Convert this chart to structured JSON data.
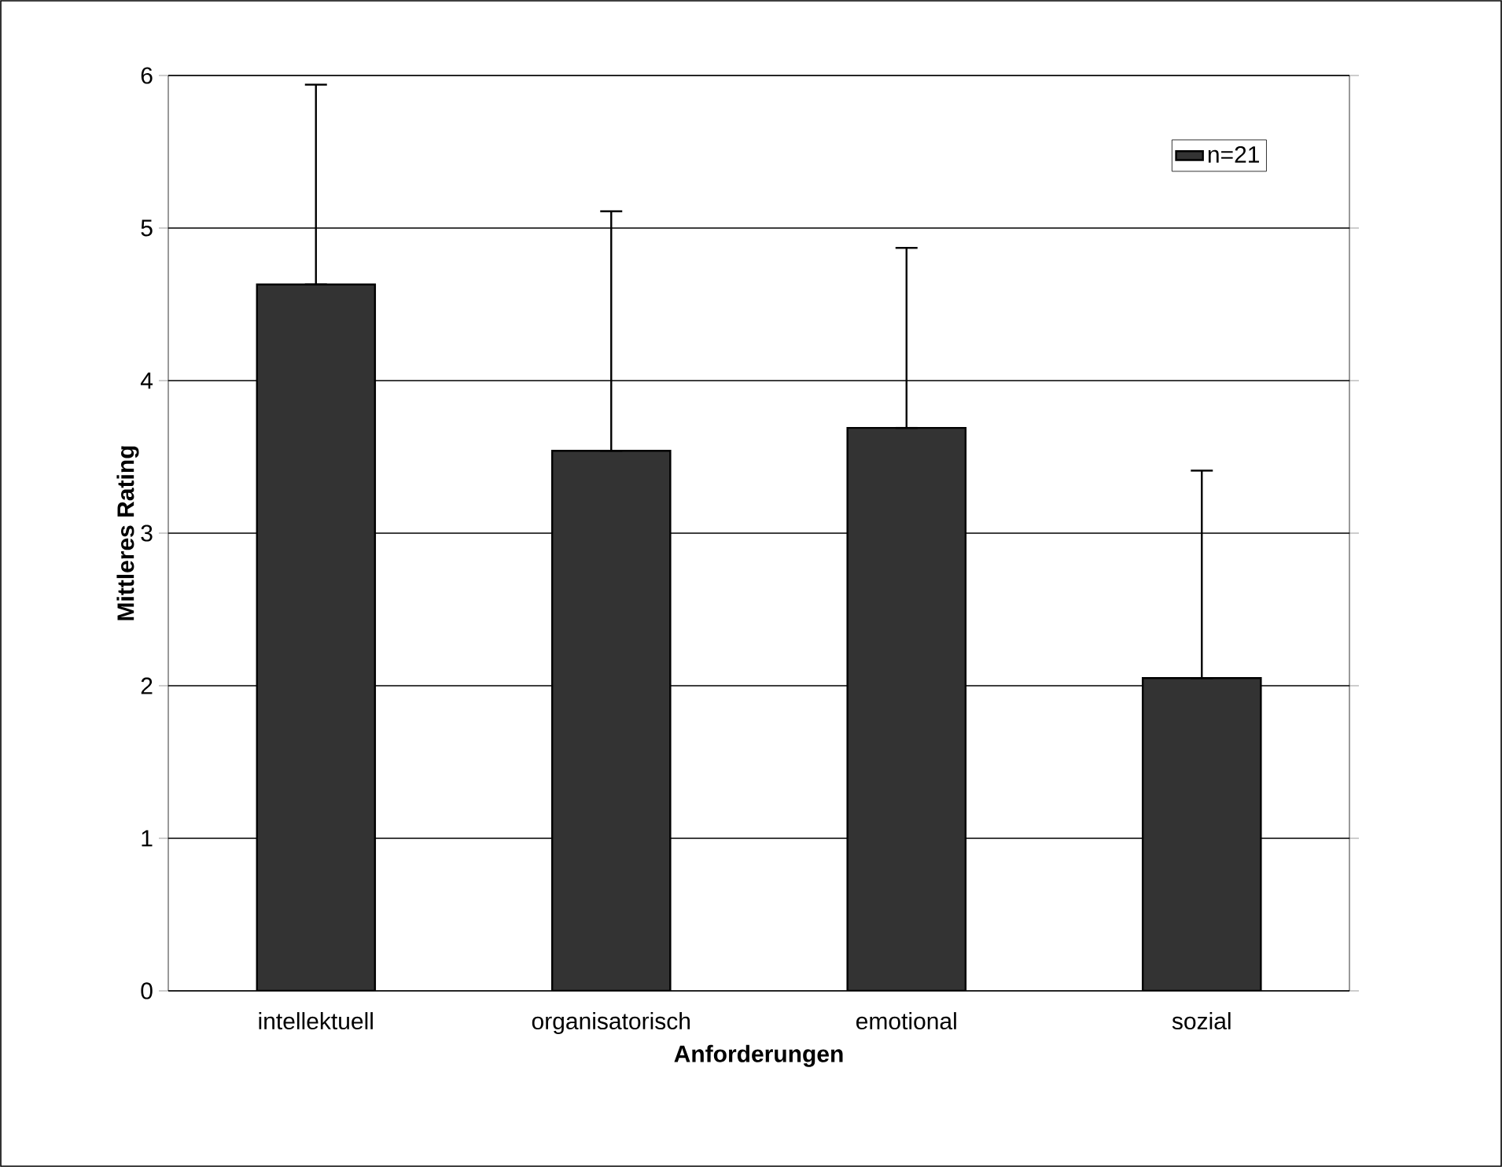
{
  "chart_data": {
    "type": "bar",
    "xlabel": "Anforderungen",
    "ylabel": "Mittleres Rating",
    "categories": [
      "intellektuell",
      "organisatorisch",
      "emotional",
      "sozial"
    ],
    "series": [
      {
        "name": "n=21",
        "color": "#333333",
        "values": [
          4.63,
          3.54,
          3.69,
          2.05
        ],
        "errors": [
          [
            4.63,
            5.94
          ],
          [
            3.54,
            5.11
          ],
          [
            3.69,
            4.87
          ],
          [
            2.05,
            3.41
          ]
        ]
      }
    ],
    "ylim": [
      0,
      6
    ],
    "yticks": [
      0,
      1,
      2,
      3,
      4,
      5,
      6
    ],
    "grid": "y",
    "legend": "top right"
  }
}
